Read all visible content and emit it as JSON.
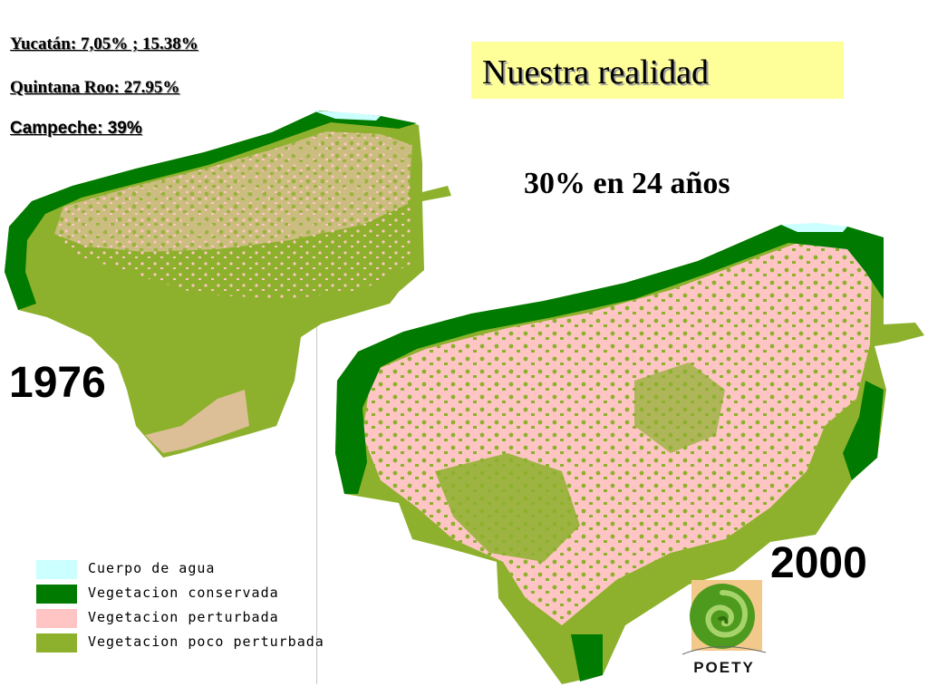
{
  "stats": {
    "yucatan": "Yucatán: 7,05% ; 15.38%",
    "quintana_roo": "Quintana Roo:  27.95%",
    "campeche": "Campeche: 39%"
  },
  "title": "Nuestra realidad",
  "subtitle": "30% en 24 años",
  "maps": {
    "before_year": "1976",
    "after_year": "2000"
  },
  "legend": [
    {
      "label": "Cuerpo de agua",
      "color": "#ccffff"
    },
    {
      "label": "Vegetacion conservada",
      "color": "#007a00"
    },
    {
      "label": "Vegetacion perturbada",
      "color": "#ffc4c4"
    },
    {
      "label": "Vegetacion poco perturbada",
      "color": "#8db12c"
    }
  ],
  "logo": {
    "text": "POETY"
  }
}
